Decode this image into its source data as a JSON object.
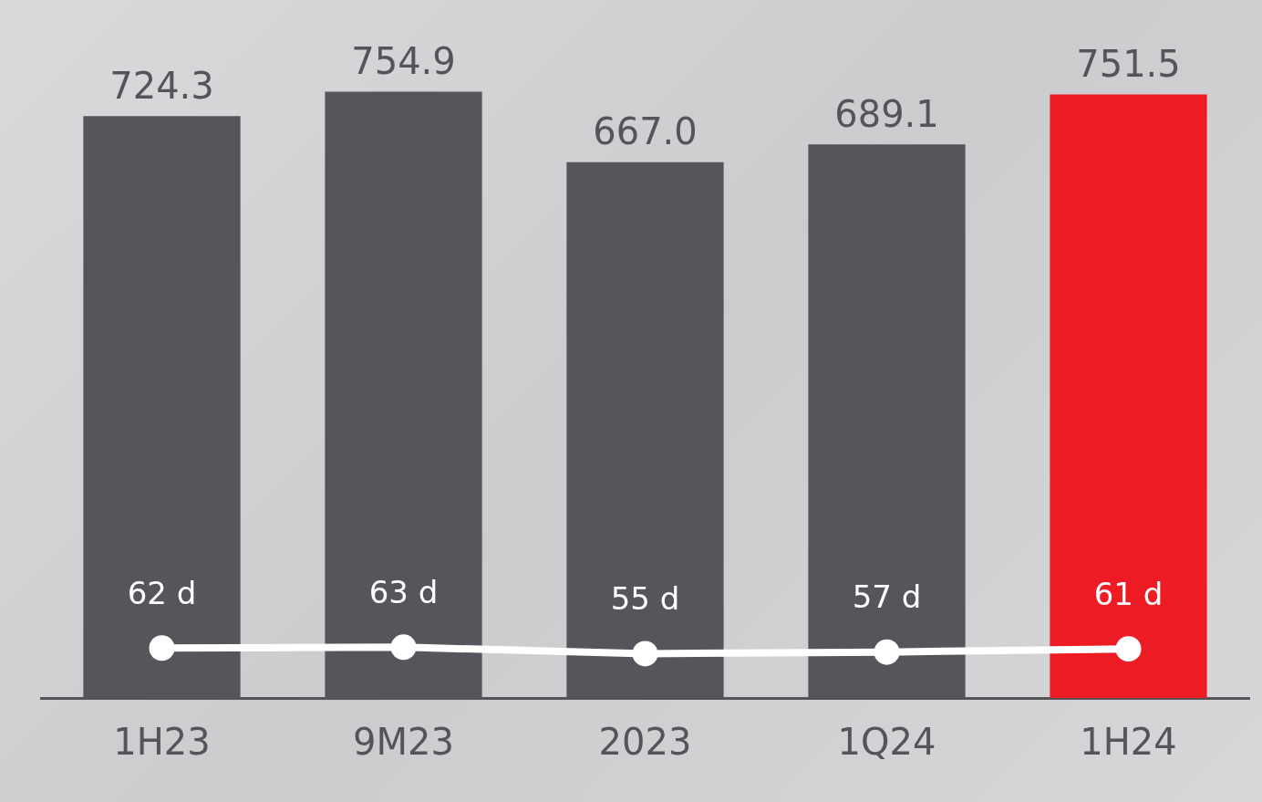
{
  "chart_data": {
    "type": "bar",
    "categories": [
      "1H23",
      "9M23",
      "2023",
      "1Q24",
      "1H24"
    ],
    "series": [
      {
        "colors": [
          "#55565b",
          "#55565b",
          "#55565b",
          "#55565b",
          "#ed1c24"
        ],
        "values": [
          724.3,
          754.9,
          667.0,
          689.1,
          751.5
        ],
        "value_labels": [
          "724.3",
          "754.9",
          "667.0",
          "689.1",
          "751.5"
        ]
      },
      {
        "type": "line",
        "axis": "y2",
        "color": "#ffffff",
        "values": [
          62,
          63,
          55,
          57,
          61
        ],
        "value_labels": [
          "62 d",
          "63 d",
          "55 d",
          "57 d",
          "61 d"
        ]
      }
    ],
    "marker": "circle",
    "legend": false,
    "grid": false,
    "tick_labels": "x"
  }
}
